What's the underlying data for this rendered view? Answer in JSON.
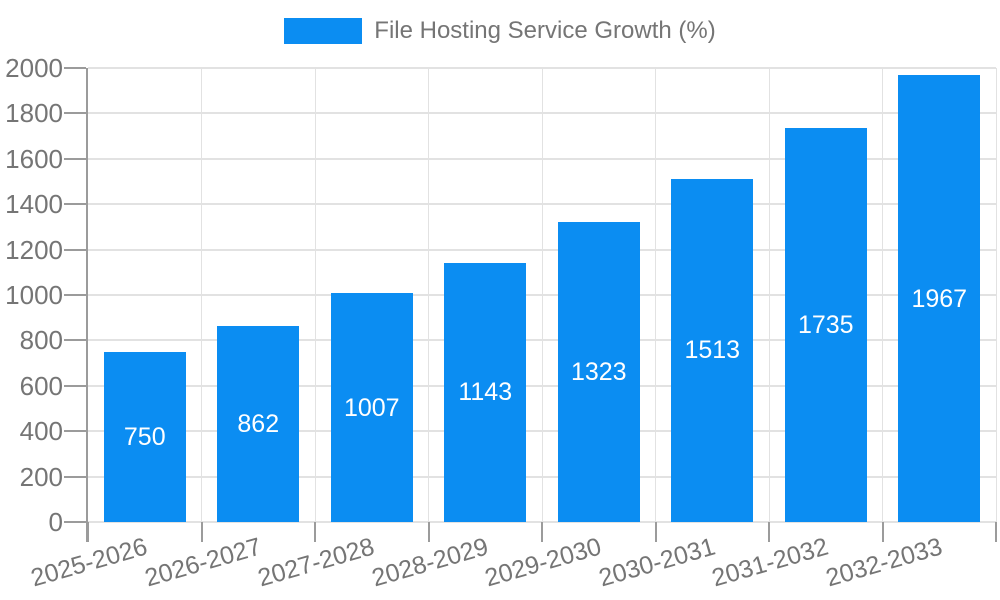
{
  "legend": {
    "label": "File Hosting Service Growth (%)"
  },
  "chart_data": {
    "type": "bar",
    "title": "",
    "legend_entries": [
      "File Hosting Service Growth (%)"
    ],
    "legend_position": "top-center",
    "categories": [
      "2025-2026",
      "2026-2027",
      "2027-2028",
      "2028-2029",
      "2029-2030",
      "2030-2031",
      "2031-2032",
      "2032-2033"
    ],
    "values": [
      750,
      862,
      1007,
      1143,
      1323,
      1513,
      1735,
      1967
    ],
    "xlabel": "",
    "ylabel": "",
    "ylim": [
      0,
      2000
    ],
    "ytick_step": 200,
    "yticks": [
      0,
      200,
      400,
      600,
      800,
      1000,
      1200,
      1400,
      1600,
      1800,
      2000
    ],
    "grid": "on",
    "value_labels": "inside-center",
    "x_label_rotation_deg": -16,
    "colors": {
      "bar": "#0b8df2",
      "text": "#757575",
      "axis": "#9b9b9b",
      "grid": "#e2e2e2",
      "value_label": "#ffffff",
      "background": "#ffffff"
    }
  }
}
